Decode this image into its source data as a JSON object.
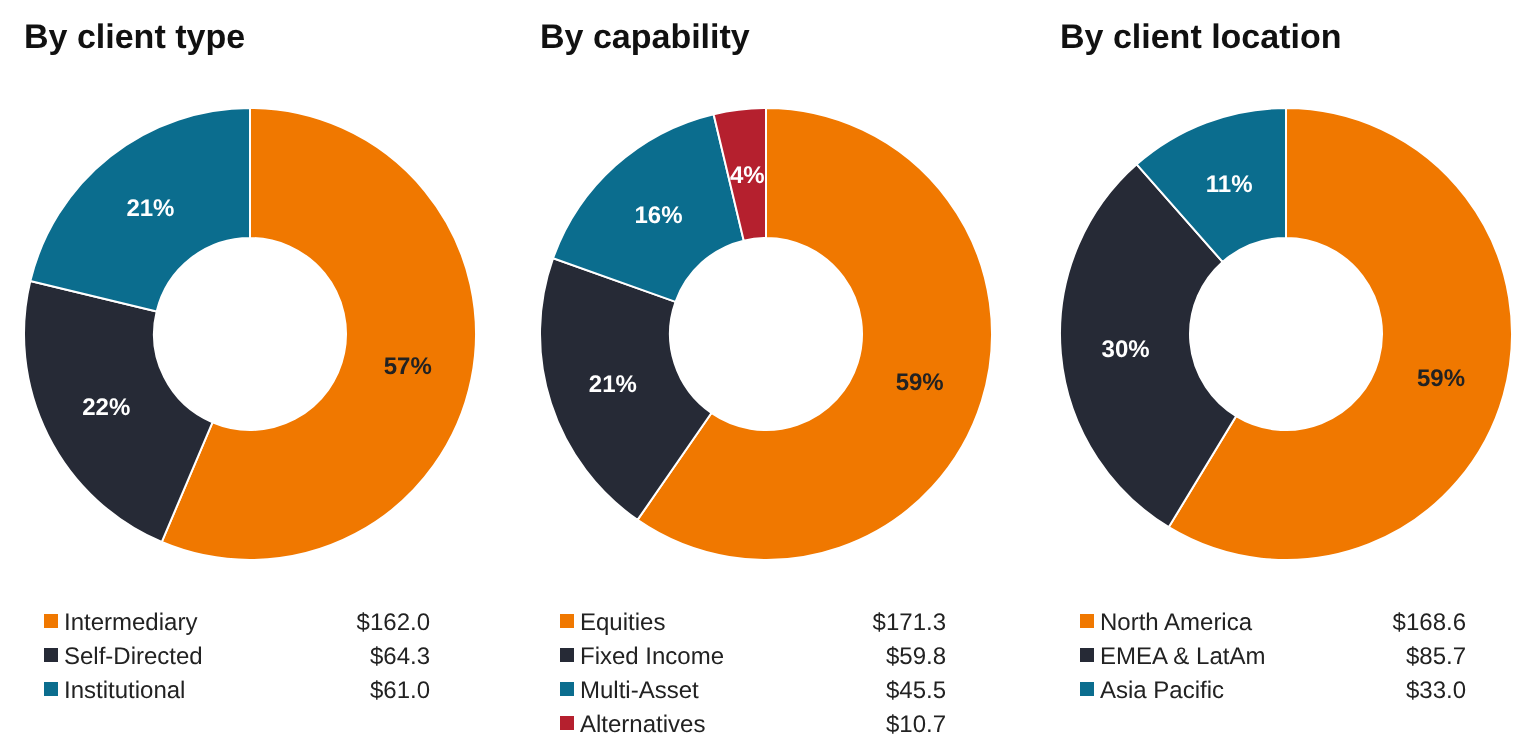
{
  "chart_data": [
    {
      "type": "donut",
      "title": "By client type",
      "categories": [
        "Intermediary",
        "Self-Directed",
        "Institutional"
      ],
      "values": [
        162.0,
        64.3,
        61.0
      ],
      "colors": [
        "#f07800",
        "#262a36",
        "#0b6d8e"
      ],
      "value_labels": [
        "$162.0",
        "$64.3",
        "$61.0"
      ],
      "legend": "bottom",
      "annotations": [
        "57%",
        "22%",
        "21%"
      ]
    },
    {
      "type": "donut",
      "title": "By capability",
      "categories": [
        "Equities",
        "Fixed Income",
        "Multi-Asset",
        "Alternatives"
      ],
      "values": [
        171.3,
        59.8,
        45.5,
        10.7
      ],
      "colors": [
        "#f07800",
        "#262a36",
        "#0b6d8e",
        "#b5202e"
      ],
      "value_labels": [
        "$171.3",
        "$59.8",
        "$45.5",
        "$10.7"
      ],
      "legend": "bottom",
      "annotations": [
        "59%",
        "21%",
        "16%",
        "4%"
      ]
    },
    {
      "type": "donut",
      "title": "By client location",
      "categories": [
        "North America",
        "EMEA & LatAm",
        "Asia Pacific"
      ],
      "values": [
        168.6,
        85.7,
        33.0
      ],
      "colors": [
        "#f07800",
        "#262a36",
        "#0b6d8e"
      ],
      "value_labels": [
        "$168.6",
        "$85.7",
        "$33.0"
      ],
      "legend": "bottom",
      "annotations": [
        "59%",
        "30%",
        "11%"
      ]
    }
  ]
}
